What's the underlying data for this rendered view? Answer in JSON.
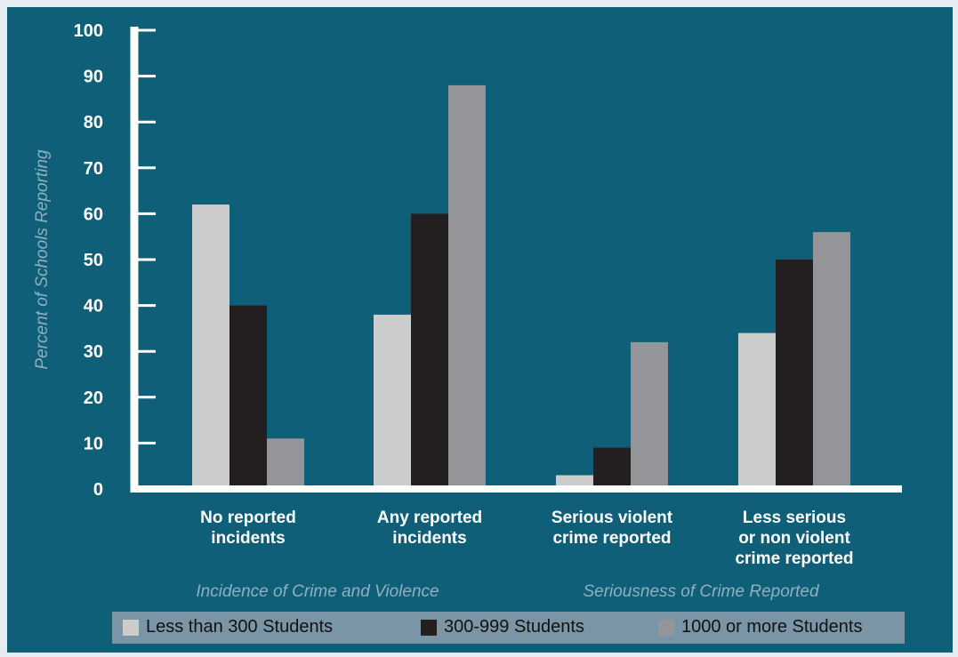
{
  "chart_data": {
    "type": "bar",
    "title": "",
    "ylabel": "Percent of Schools Reporting",
    "ylim": [
      0,
      100
    ],
    "yticks": [
      0,
      10,
      20,
      30,
      40,
      50,
      60,
      70,
      80,
      90,
      100
    ],
    "categories": [
      [
        "No reported",
        "incidents"
      ],
      [
        "Any reported",
        "incidents"
      ],
      [
        "Serious violent",
        "crime reported"
      ],
      [
        "Less serious",
        "or non violent",
        "crime reported"
      ]
    ],
    "category_groups": [
      "Incidence of Crime and Violence",
      "Seriousness of Crime Reported"
    ],
    "series": [
      {
        "name": "Less than 300 Students",
        "color": "#cccccc",
        "values": [
          62,
          38,
          3,
          34
        ]
      },
      {
        "name": "300-999 Students",
        "color": "#231f20",
        "values": [
          40,
          60,
          9,
          50
        ]
      },
      {
        "name": "1000 or more Students",
        "color": "#939598",
        "values": [
          11,
          88,
          32,
          56
        ]
      }
    ],
    "legend": "bottom",
    "grid": false
  },
  "colors": {
    "background": "#0f5f78",
    "axis": "#ffffff",
    "legend_background": "#7a96a6"
  }
}
